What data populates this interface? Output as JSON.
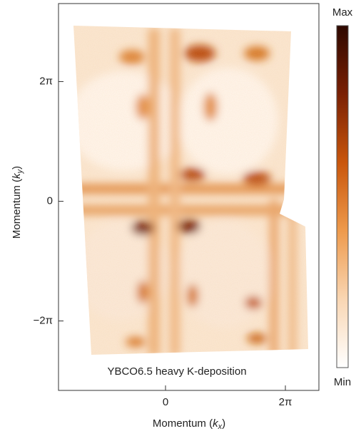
{
  "chart_data": {
    "type": "heatmap",
    "xlabel": [
      "Momentum (",
      "k",
      "x",
      ")"
    ],
    "ylabel": [
      "Momentum (",
      "k",
      "y",
      ")"
    ],
    "annotation": "YBCO6.5 heavy K-deposition",
    "xlim": [
      -5.61,
      8.04
    ],
    "ylim": [
      -9.93,
      10.38
    ],
    "xticks": [
      0,
      {
        "value": 6.283,
        "label": "2π"
      }
    ],
    "yticks": [
      {
        "value": -6.283,
        "label": "−2π"
      },
      0,
      {
        "value": 6.283,
        "label": "2π"
      }
    ],
    "colorbar": {
      "max_label": "Max",
      "min_label": "Min",
      "colors": [
        "#2e0800",
        "#7a2004",
        "#c9560c",
        "#ee9a4c",
        "#f9d6b3",
        "#ffffff"
      ]
    }
  }
}
